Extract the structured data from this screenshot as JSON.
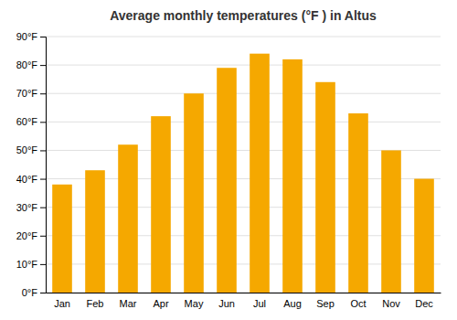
{
  "chart_data": {
    "type": "bar",
    "title": "Average monthly temperatures (°F ) in Altus",
    "categories": [
      "Jan",
      "Feb",
      "Mar",
      "Apr",
      "May",
      "Jun",
      "Jul",
      "Aug",
      "Sep",
      "Oct",
      "Nov",
      "Dec"
    ],
    "values": [
      38,
      43,
      52,
      62,
      70,
      79,
      84,
      82,
      74,
      63,
      50,
      40
    ],
    "color": "#F5A800",
    "ylim": [
      0,
      90
    ],
    "yticks": [
      {
        "value": 0,
        "label": "0°F"
      },
      {
        "value": 10,
        "label": "10°F"
      },
      {
        "value": 20,
        "label": "20°F"
      },
      {
        "value": 30,
        "label": "30°F"
      },
      {
        "value": 40,
        "label": "40°F"
      },
      {
        "value": 50,
        "label": "50°F"
      },
      {
        "value": 60,
        "label": "60°F"
      },
      {
        "value": 70,
        "label": "70°F"
      },
      {
        "value": 80,
        "label": "80°F"
      },
      {
        "value": 90,
        "label": "90°F"
      }
    ],
    "grid": true
  }
}
